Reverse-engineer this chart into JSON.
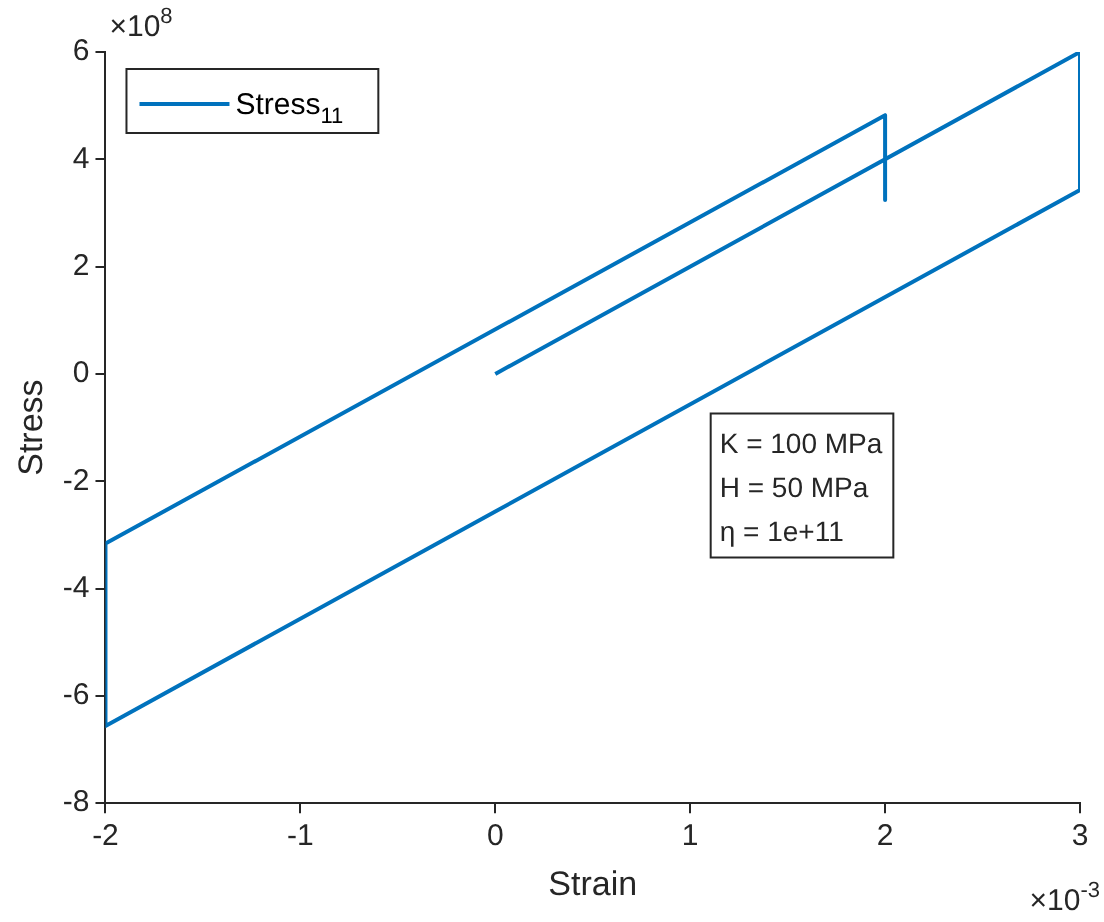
{
  "chart_data": {
    "type": "line",
    "xlabel": "Strain",
    "ylabel": "Stress",
    "x": [
      0,
      3,
      3,
      -2,
      -2,
      2,
      2
    ],
    "series": [
      {
        "name": "Stress$_{11}$",
        "color": "#0072bd",
        "values": [
          0,
          6,
          3.43,
          -6.56,
          -3.16,
          4.82,
          3.24
        ]
      }
    ],
    "xlim": [
      -2,
      3
    ],
    "xticks": [
      -2,
      -1,
      0,
      1,
      2,
      3
    ],
    "ylim": [
      -8,
      6
    ],
    "yticks": [
      -8,
      -6,
      -4,
      -2,
      0,
      2,
      4,
      6
    ],
    "grid": false,
    "legend": "top left",
    "marker": "none",
    "line_style": "solid",
    "annotations": [
      "×10$^{8}$",
      "×10$^{-3}$",
      "K = 100 MPa",
      "H = 50 MPa",
      "η = 1e+11"
    ]
  }
}
